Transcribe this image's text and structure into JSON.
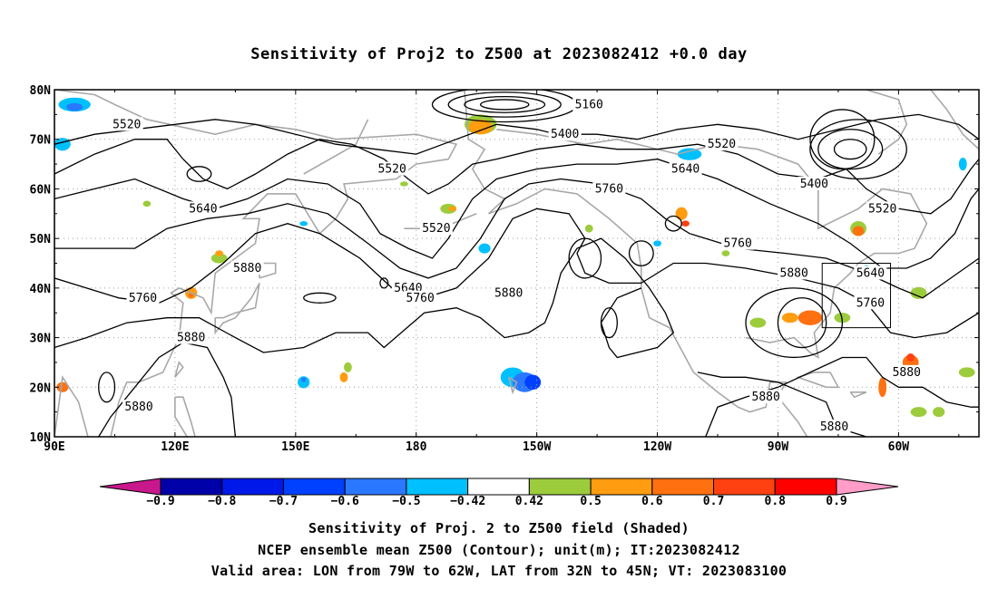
{
  "title": "Sensitivity of Proj2 to Z500 at 2023082412 +0.0 day",
  "lat_labels": [
    "80N",
    "70N",
    "60N",
    "50N",
    "40N",
    "30N",
    "20N",
    "10N"
  ],
  "lon_labels": [
    "90E",
    "120E",
    "150E",
    "180",
    "150W",
    "120W",
    "90W",
    "60W"
  ],
  "contour_labels": [
    {
      "text": "5520",
      "lon": 108,
      "lat": 73
    },
    {
      "text": "5160",
      "lon": -137,
      "lat": 77
    },
    {
      "text": "5400",
      "lon": -143,
      "lat": 71
    },
    {
      "text": "5520",
      "lon": -104,
      "lat": 69
    },
    {
      "text": "5520",
      "lon": 174,
      "lat": 64
    },
    {
      "text": "5640",
      "lon": -113,
      "lat": 64
    },
    {
      "text": "5760",
      "lon": -132,
      "lat": 60
    },
    {
      "text": "5400",
      "lon": -81,
      "lat": 61
    },
    {
      "text": "5520",
      "lon": -64,
      "lat": 56
    },
    {
      "text": "5640",
      "lon": 127,
      "lat": 56
    },
    {
      "text": "5520",
      "lon": 185,
      "lat": 52
    },
    {
      "text": "5760",
      "lon": -100,
      "lat": 49
    },
    {
      "text": "5880",
      "lon": 138,
      "lat": 44
    },
    {
      "text": "5880",
      "lon": -86,
      "lat": 43
    },
    {
      "text": "5640",
      "lon": -67,
      "lat": 43
    },
    {
      "text": "5640",
      "lon": 178,
      "lat": 40
    },
    {
      "text": "5760",
      "lon": 112,
      "lat": 38
    },
    {
      "text": "5760",
      "lon": 181,
      "lat": 38
    },
    {
      "text": "5880",
      "lon": 203,
      "lat": 39
    },
    {
      "text": "5760",
      "lon": -67,
      "lat": 37
    },
    {
      "text": "5880",
      "lon": 124,
      "lat": 30
    },
    {
      "text": "5880",
      "lon": -58,
      "lat": 23
    },
    {
      "text": "5880",
      "lon": -93,
      "lat": 18
    },
    {
      "text": "5880",
      "lon": 111,
      "lat": 16
    },
    {
      "text": "5880",
      "lon": -76,
      "lat": 12
    }
  ],
  "colorbar": {
    "labels": [
      "-0.9",
      "-0.8",
      "-0.7",
      "-0.6",
      "-0.5",
      "-0.42",
      "0.42",
      "0.5",
      "0.6",
      "0.7",
      "0.8",
      "0.9"
    ],
    "colors": [
      "#0000a8",
      "#0018e8",
      "#0040ff",
      "#2a78ff",
      "#00c0ff",
      "#ffffff",
      "#9ccc3c",
      "#ff9c10",
      "#ff7010",
      "#ff4010",
      "#ff0000"
    ],
    "low_color": "#c8188c",
    "high_color": "#ff9cc8"
  },
  "captions": [
    "Sensitivity of Proj. 2 to Z500 field (Shaded)",
    "NCEP ensemble mean Z500 (Contour); unit(m); IT:2023082412",
    "Valid area: LON from 79W to 62W, LAT from 32N to 45N; VT: 2023083100"
  ],
  "valid_area": {
    "lon_min": -79,
    "lon_max": -62,
    "lat_min": 32,
    "lat_max": 45
  }
}
